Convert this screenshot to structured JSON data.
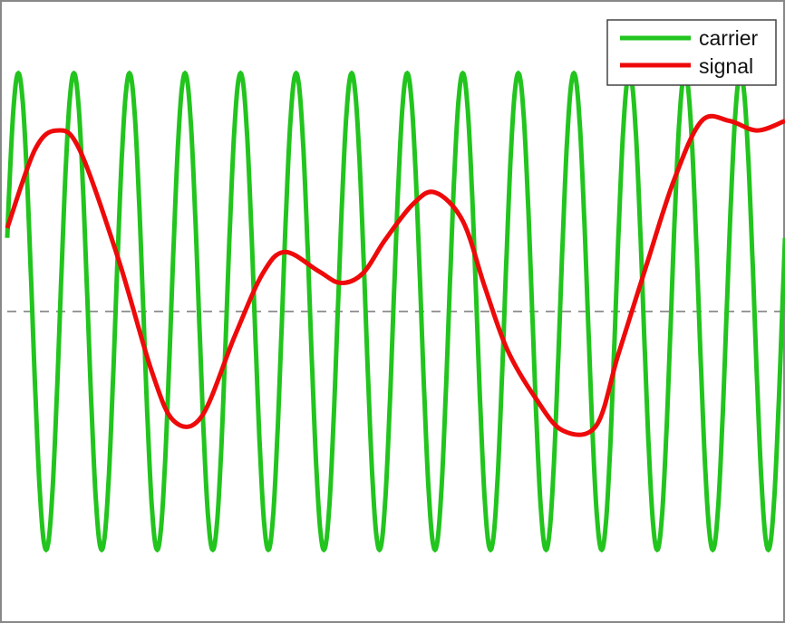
{
  "chart_data": {
    "type": "line",
    "title": "",
    "xlabel": "",
    "ylabel": "",
    "grid": false,
    "legend_position": "top-right",
    "xlim": [
      0,
      14
    ],
    "ylim": [
      -1.3,
      1.3
    ],
    "zero_line": {
      "y": 0,
      "style": "dashed",
      "color": "#999999"
    },
    "series": [
      {
        "name": "carrier",
        "color": "#22c41e",
        "function": "cosine",
        "amplitude": 1.0,
        "periods_shown": 14
      },
      {
        "name": "signal",
        "color": "#ee0a0a",
        "x": [
          0,
          0.5,
          0.9,
          1.3,
          2.0,
          2.6,
          3.0,
          3.5,
          4.1,
          4.6,
          5.0,
          5.6,
          6.0,
          6.4,
          6.8,
          7.3,
          7.7,
          8.2,
          8.6,
          9.0,
          9.5,
          10.0,
          10.6,
          11.0,
          11.5,
          12.0,
          12.5,
          13.0,
          13.5,
          14.0
        ],
        "y": [
          0.35,
          0.68,
          0.76,
          0.68,
          0.22,
          -0.25,
          -0.46,
          -0.44,
          -0.1,
          0.16,
          0.25,
          0.17,
          0.12,
          0.16,
          0.3,
          0.45,
          0.5,
          0.38,
          0.1,
          -0.16,
          -0.36,
          -0.5,
          -0.48,
          -0.18,
          0.19,
          0.55,
          0.8,
          0.8,
          0.76,
          0.8
        ]
      }
    ]
  }
}
